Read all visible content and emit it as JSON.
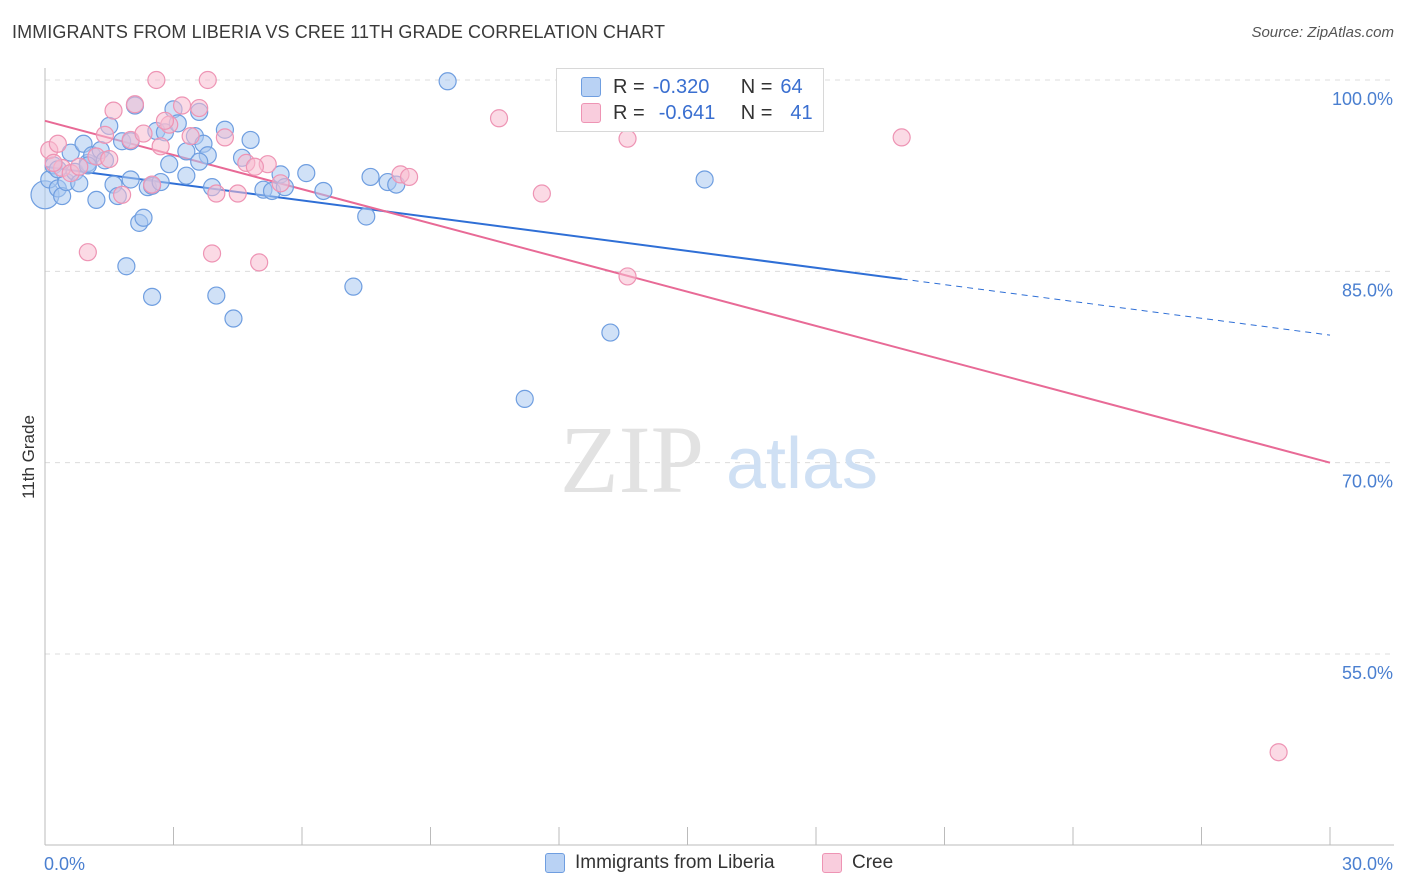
{
  "title": "IMMIGRANTS FROM LIBERIA VS CREE 11TH GRADE CORRELATION CHART",
  "source": "Source: ZipAtlas.com",
  "watermark": {
    "zip": "ZIP",
    "atlas": "atlas"
  },
  "legend": {
    "series1": {
      "r_label": "R =",
      "r_value": "-0.320",
      "n_label": "N =",
      "n_value": "64"
    },
    "series2": {
      "r_label": "R =",
      "r_value": "-0.641",
      "n_label": "N =",
      "n_value": "41"
    }
  },
  "colors": {
    "blue_fill": "#a9c8f0",
    "blue_stroke": "#6f9ee0",
    "blue_line": "#2f6fd6",
    "pink_fill": "#f7bcd0",
    "pink_stroke": "#ee94b4",
    "pink_line": "#e86a96",
    "grid": "#dcdcdc",
    "axis_text": "#4a7fd0"
  },
  "chart_data": {
    "type": "scatter",
    "title": "IMMIGRANTS FROM LIBERIA VS CREE 11TH GRADE CORRELATION CHART",
    "xlabel": "",
    "ylabel": "11th Grade",
    "xlim": [
      0,
      30
    ],
    "ylim": [
      40,
      101.5
    ],
    "x_tick_labels": [
      "0.0%",
      "30.0%"
    ],
    "y_ticks": [
      55,
      70,
      85,
      100
    ],
    "y_tick_labels": [
      "55.0%",
      "70.0%",
      "85.0%",
      "100.0%"
    ],
    "series": [
      {
        "name": "Immigrants from Liberia",
        "color": "#6f9ee0",
        "trend": {
          "x0": 0,
          "y0": 93.2,
          "x1": 20.0,
          "y1": 84.4,
          "dash_x1": 30,
          "dash_y1": 80.0
        },
        "points": [
          [
            0.0,
            91.0
          ],
          [
            0.1,
            92.2
          ],
          [
            0.2,
            93.3
          ],
          [
            0.3,
            91.5
          ],
          [
            0.4,
            90.9
          ],
          [
            0.5,
            92.0
          ],
          [
            0.6,
            94.3
          ],
          [
            0.7,
            92.8
          ],
          [
            0.8,
            91.9
          ],
          [
            0.9,
            95.0
          ],
          [
            1.0,
            93.5
          ],
          [
            1.1,
            94.1
          ],
          [
            1.2,
            90.6
          ],
          [
            1.3,
            94.5
          ],
          [
            1.5,
            96.4
          ],
          [
            1.6,
            91.8
          ],
          [
            1.7,
            90.9
          ],
          [
            1.8,
            95.2
          ],
          [
            1.9,
            85.4
          ],
          [
            2.0,
            92.2
          ],
          [
            2.1,
            98.0
          ],
          [
            2.2,
            88.8
          ],
          [
            2.3,
            89.2
          ],
          [
            2.4,
            91.6
          ],
          [
            2.5,
            91.7
          ],
          [
            2.5,
            83.0
          ],
          [
            2.6,
            96.0
          ],
          [
            2.7,
            92.0
          ],
          [
            2.8,
            95.9
          ],
          [
            2.9,
            93.4
          ],
          [
            3.0,
            97.7
          ],
          [
            3.1,
            96.6
          ],
          [
            3.3,
            92.5
          ],
          [
            3.3,
            94.4
          ],
          [
            3.5,
            95.6
          ],
          [
            3.6,
            97.5
          ],
          [
            3.7,
            95.0
          ],
          [
            3.8,
            94.1
          ],
          [
            3.9,
            91.6
          ],
          [
            4.0,
            83.1
          ],
          [
            4.2,
            96.1
          ],
          [
            4.4,
            81.3
          ],
          [
            4.6,
            93.9
          ],
          [
            4.8,
            95.3
          ],
          [
            5.1,
            91.4
          ],
          [
            5.3,
            91.3
          ],
          [
            5.5,
            92.6
          ],
          [
            6.1,
            92.7
          ],
          [
            6.5,
            91.3
          ],
          [
            7.2,
            83.8
          ],
          [
            7.5,
            89.3
          ],
          [
            7.6,
            92.4
          ],
          [
            8.0,
            92.0
          ],
          [
            8.2,
            91.8
          ],
          [
            9.4,
            99.9
          ],
          [
            11.2,
            75.0
          ],
          [
            13.2,
            80.2
          ],
          [
            15.4,
            92.2
          ],
          [
            0.3,
            93.0
          ],
          [
            1.0,
            93.3
          ],
          [
            2.0,
            95.2
          ],
          [
            3.6,
            93.6
          ],
          [
            5.6,
            91.6
          ],
          [
            1.4,
            93.7
          ]
        ]
      },
      {
        "name": "Cree",
        "color": "#ee94b4",
        "trend": {
          "x0": 0,
          "y0": 96.8,
          "x1": 30,
          "y1": 70.0
        },
        "points": [
          [
            0.1,
            94.5
          ],
          [
            0.3,
            95.0
          ],
          [
            0.4,
            93.1
          ],
          [
            0.6,
            92.7
          ],
          [
            0.8,
            93.2
          ],
          [
            1.0,
            86.5
          ],
          [
            1.2,
            94.0
          ],
          [
            1.4,
            95.7
          ],
          [
            1.6,
            97.6
          ],
          [
            1.8,
            91.0
          ],
          [
            2.0,
            95.3
          ],
          [
            2.1,
            98.1
          ],
          [
            2.3,
            95.8
          ],
          [
            2.5,
            91.8
          ],
          [
            2.6,
            100.0
          ],
          [
            2.7,
            94.8
          ],
          [
            2.9,
            96.5
          ],
          [
            3.2,
            98.0
          ],
          [
            3.4,
            95.6
          ],
          [
            3.6,
            97.8
          ],
          [
            3.8,
            100.0
          ],
          [
            3.9,
            86.4
          ],
          [
            4.0,
            91.1
          ],
          [
            4.2,
            95.5
          ],
          [
            4.5,
            91.1
          ],
          [
            4.7,
            93.5
          ],
          [
            5.0,
            85.7
          ],
          [
            5.2,
            93.4
          ],
          [
            5.5,
            91.9
          ],
          [
            8.3,
            92.6
          ],
          [
            8.5,
            92.4
          ],
          [
            10.6,
            97.0
          ],
          [
            11.6,
            91.1
          ],
          [
            13.6,
            95.4
          ],
          [
            13.6,
            84.6
          ],
          [
            20.0,
            95.5
          ],
          [
            28.8,
            47.3
          ],
          [
            0.2,
            93.5
          ],
          [
            1.5,
            93.8
          ],
          [
            2.8,
            96.8
          ],
          [
            4.9,
            93.2
          ]
        ]
      }
    ]
  },
  "bottom_legend": {
    "item1": "Immigrants from Liberia",
    "item2": "Cree"
  }
}
